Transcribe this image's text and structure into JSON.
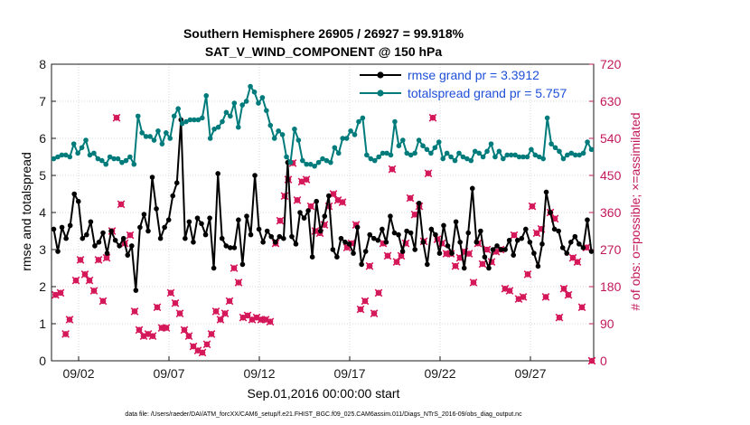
{
  "chart_data": {
    "type": "line",
    "title": "Southern Hemisphere 26905 / 26927 = 99.918%",
    "subtitle": "SAT_V_WIND_COMPONENT @ 150 hPa",
    "xlabel": "Sep.01,2016 00:00:00 start",
    "ylabel": "rmse and totalspread",
    "y2label": "# of obs: o=possible; ×=assimilated",
    "footnote": "data file: /Users/raeder/DAI/ATM_forcXX/CAM6_setup/f.e21.FHIST_BGC.f09_025.CAM6assim.011/Diags_NTrS_2016-09/obs_diag_output.nc",
    "x_range": [
      0.5,
      30.5
    ],
    "ylim": [
      0,
      8
    ],
    "y2lim": [
      0,
      720
    ],
    "grid": true,
    "legend_position": "top-right",
    "x_ticks": [
      {
        "value": 2,
        "label": "09/02"
      },
      {
        "value": 7,
        "label": "09/07"
      },
      {
        "value": 12,
        "label": "09/12"
      },
      {
        "value": 17,
        "label": "09/17"
      },
      {
        "value": 22,
        "label": "09/22"
      },
      {
        "value": 27,
        "label": "09/27"
      }
    ],
    "y_ticks": [
      "0",
      "1",
      "2",
      "3",
      "4",
      "5",
      "6",
      "7",
      "8"
    ],
    "y2_ticks": [
      "0",
      "90",
      "180",
      "270",
      "360",
      "450",
      "540",
      "630",
      "720"
    ],
    "colors": {
      "rmse": "#000000",
      "totalspread": "#007b7b",
      "obs": "#d4185a",
      "legend_text": "#1f4fd8",
      "right_axis": "#c2185b"
    },
    "series": [
      {
        "name": "rmse grand pr = 3.3912",
        "color": "#000000",
        "values": [
          3.55,
          2.95,
          3.6,
          3.3,
          3.65,
          4.5,
          4.3,
          3.3,
          3.4,
          3.75,
          3.1,
          3.2,
          3.45,
          2.9,
          3.5,
          3.25,
          3.1,
          3.3,
          2.85,
          3.1,
          1.9,
          3.6,
          3.95,
          3.5,
          4.95,
          4.1,
          3.3,
          3.6,
          3.8,
          4.45,
          4.8,
          6.5,
          3.3,
          3.75,
          3.2,
          3.85,
          3.7,
          3.4,
          3.85,
          2.5,
          5.05,
          3.3,
          3.1,
          3.05,
          3.05,
          3.8,
          2.6,
          3.9,
          3.4,
          5.0,
          3.55,
          3.2,
          3.5,
          3.35,
          3.2,
          3.35,
          3.3,
          5.35,
          3.35,
          3.15,
          4.0,
          3.85,
          4.05,
          2.8,
          4.3,
          3.5,
          3.9,
          4.45,
          3.0,
          2.8,
          3.3,
          3.2,
          3.15,
          2.9,
          3.6,
          2.6,
          2.95,
          3.4,
          3.3,
          3.25,
          3.55,
          3.2,
          3.9,
          3.45,
          3.4,
          2.95,
          3.5,
          3.45,
          3.0,
          4.25,
          3.2,
          2.6,
          3.55,
          3.4,
          2.9,
          3.65,
          3.1,
          2.9,
          3.75,
          3.2,
          2.5,
          3.45,
          4.65,
          3.2,
          3.5,
          2.8,
          2.5,
          3.0,
          3.1,
          3.0,
          3.0,
          3.25,
          2.85,
          3.25,
          3.3,
          3.55,
          3.2,
          2.9,
          2.55,
          3.15,
          4.55,
          4.0,
          3.55,
          3.5,
          3.05,
          2.9,
          3.2,
          3.35,
          3.15,
          3.05,
          3.8,
          2.95
        ]
      },
      {
        "name": "totalspread grand pr = 5.757",
        "color": "#007b7b",
        "values": [
          5.45,
          5.5,
          5.55,
          5.55,
          5.5,
          5.85,
          5.6,
          5.75,
          5.95,
          5.55,
          5.6,
          5.45,
          5.4,
          5.3,
          5.5,
          5.45,
          5.45,
          5.35,
          5.4,
          5.5,
          5.3,
          6.6,
          6.15,
          6.05,
          6.05,
          5.95,
          6.2,
          5.85,
          6.15,
          6.0,
          6.6,
          6.8,
          6.4,
          6.45,
          6.5,
          6.5,
          6.5,
          6.55,
          7.15,
          6.0,
          6.25,
          6.3,
          6.45,
          6.7,
          6.6,
          6.95,
          6.3,
          6.9,
          7.0,
          7.4,
          7.25,
          6.95,
          7.1,
          6.75,
          6.35,
          6.0,
          6.2,
          6.1,
          5.5,
          5.35,
          6.25,
          5.95,
          5.4,
          5.3,
          5.3,
          5.25,
          5.35,
          5.45,
          5.4,
          5.35,
          5.75,
          5.6,
          6.0,
          6.0,
          6.2,
          6.1,
          6.45,
          6.55,
          5.55,
          5.45,
          5.4,
          5.5,
          5.6,
          5.6,
          5.55,
          6.45,
          5.8,
          5.95,
          5.6,
          5.55,
          5.6,
          5.95,
          5.8,
          5.7,
          5.6,
          5.75,
          5.9,
          5.45,
          5.6,
          5.5,
          5.4,
          5.6,
          5.5,
          5.45,
          5.4,
          5.65,
          5.6,
          5.5,
          5.65,
          5.85,
          5.5,
          5.65,
          5.45,
          5.55,
          5.55,
          5.55,
          5.5,
          5.5,
          5.5,
          5.7,
          5.55,
          5.5,
          5.45,
          6.55,
          5.85,
          5.75,
          5.65,
          5.45,
          5.55,
          5.6,
          5.55,
          5.55,
          5.6,
          5.9,
          5.7
        ]
      }
    ],
    "obs_counts": [
      {
        "x": 0.72,
        "y": 160
      },
      {
        "x": 1.0,
        "y": 165
      },
      {
        "x": 1.28,
        "y": 65
      },
      {
        "x": 1.5,
        "y": 100
      },
      {
        "x": 1.85,
        "y": 195
      },
      {
        "x": 2.1,
        "y": 245
      },
      {
        "x": 2.35,
        "y": 210
      },
      {
        "x": 2.6,
        "y": 195
      },
      {
        "x": 2.85,
        "y": 170
      },
      {
        "x": 3.1,
        "y": 245
      },
      {
        "x": 3.35,
        "y": 145
      },
      {
        "x": 3.55,
        "y": 250
      },
      {
        "x": 3.85,
        "y": 315
      },
      {
        "x": 4.1,
        "y": 590
      },
      {
        "x": 4.35,
        "y": 380
      },
      {
        "x": 4.55,
        "y": 285
      },
      {
        "x": 4.85,
        "y": 305
      },
      {
        "x": 5.1,
        "y": 120
      },
      {
        "x": 5.35,
        "y": 75
      },
      {
        "x": 5.6,
        "y": 60
      },
      {
        "x": 5.85,
        "y": 65
      },
      {
        "x": 6.1,
        "y": 60
      },
      {
        "x": 6.35,
        "y": 130
      },
      {
        "x": 6.6,
        "y": 80
      },
      {
        "x": 6.85,
        "y": 80
      },
      {
        "x": 7.1,
        "y": 165
      },
      {
        "x": 7.35,
        "y": 140
      },
      {
        "x": 7.6,
        "y": 115
      },
      {
        "x": 7.85,
        "y": 75
      },
      {
        "x": 8.1,
        "y": 60
      },
      {
        "x": 8.35,
        "y": 35
      },
      {
        "x": 8.6,
        "y": 25
      },
      {
        "x": 8.85,
        "y": 20
      },
      {
        "x": 9.1,
        "y": 40
      },
      {
        "x": 9.35,
        "y": 65
      },
      {
        "x": 9.6,
        "y": 120
      },
      {
        "x": 9.85,
        "y": 100
      },
      {
        "x": 10.1,
        "y": 115
      },
      {
        "x": 10.35,
        "y": 145
      },
      {
        "x": 10.6,
        "y": 225
      },
      {
        "x": 10.85,
        "y": 190
      },
      {
        "x": 11.1,
        "y": 105
      },
      {
        "x": 11.35,
        "y": 110
      },
      {
        "x": 11.6,
        "y": 100
      },
      {
        "x": 11.85,
        "y": 105
      },
      {
        "x": 12.1,
        "y": 100
      },
      {
        "x": 12.35,
        "y": 100
      },
      {
        "x": 12.6,
        "y": 95
      },
      {
        "x": 12.9,
        "y": 285
      },
      {
        "x": 13.15,
        "y": 340
      },
      {
        "x": 13.4,
        "y": 400
      },
      {
        "x": 13.6,
        "y": 440
      },
      {
        "x": 13.85,
        "y": 480
      },
      {
        "x": 14.1,
        "y": 390
      },
      {
        "x": 14.35,
        "y": 435
      },
      {
        "x": 14.6,
        "y": 440
      },
      {
        "x": 14.85,
        "y": 375
      },
      {
        "x": 15.1,
        "y": 315
      },
      {
        "x": 15.35,
        "y": 310
      },
      {
        "x": 15.6,
        "y": 330
      },
      {
        "x": 15.85,
        "y": 375
      },
      {
        "x": 16.1,
        "y": 405
      },
      {
        "x": 16.35,
        "y": 390
      },
      {
        "x": 16.6,
        "y": 385
      },
      {
        "x": 16.85,
        "y": 275
      },
      {
        "x": 17.1,
        "y": 285
      },
      {
        "x": 17.35,
        "y": 330
      },
      {
        "x": 17.6,
        "y": 125
      },
      {
        "x": 17.85,
        "y": 145
      },
      {
        "x": 18.1,
        "y": 230
      },
      {
        "x": 18.35,
        "y": 115
      },
      {
        "x": 18.6,
        "y": 165
      },
      {
        "x": 18.85,
        "y": 285
      },
      {
        "x": 19.1,
        "y": 255
      },
      {
        "x": 19.35,
        "y": 465
      },
      {
        "x": 19.6,
        "y": 240
      },
      {
        "x": 19.85,
        "y": 255
      },
      {
        "x": 20.1,
        "y": 285
      },
      {
        "x": 20.35,
        "y": 395
      },
      {
        "x": 20.6,
        "y": 355
      },
      {
        "x": 20.85,
        "y": 375
      },
      {
        "x": 21.1,
        "y": 290
      },
      {
        "x": 21.35,
        "y": 455
      },
      {
        "x": 21.6,
        "y": 590
      },
      {
        "x": 21.85,
        "y": 295
      },
      {
        "x": 22.1,
        "y": 285
      },
      {
        "x": 22.35,
        "y": 260
      },
      {
        "x": 22.6,
        "y": 260
      },
      {
        "x": 22.85,
        "y": 230
      },
      {
        "x": 23.1,
        "y": 250
      },
      {
        "x": 23.35,
        "y": 265
      },
      {
        "x": 23.6,
        "y": 260
      },
      {
        "x": 23.85,
        "y": 190
      },
      {
        "x": 24.1,
        "y": 285
      },
      {
        "x": 24.35,
        "y": 235
      },
      {
        "x": 24.6,
        "y": 270
      },
      {
        "x": 24.85,
        "y": 240
      },
      {
        "x": 25.1,
        "y": 265
      },
      {
        "x": 25.35,
        "y": 270
      },
      {
        "x": 25.6,
        "y": 175
      },
      {
        "x": 25.85,
        "y": 170
      },
      {
        "x": 26.1,
        "y": 305
      },
      {
        "x": 26.35,
        "y": 150
      },
      {
        "x": 26.6,
        "y": 155
      },
      {
        "x": 26.85,
        "y": 210
      },
      {
        "x": 27.1,
        "y": 375
      },
      {
        "x": 27.35,
        "y": 310
      },
      {
        "x": 27.6,
        "y": 320
      },
      {
        "x": 27.85,
        "y": 155
      },
      {
        "x": 28.1,
        "y": 360
      },
      {
        "x": 28.35,
        "y": 345
      },
      {
        "x": 28.6,
        "y": 105
      },
      {
        "x": 28.85,
        "y": 175
      },
      {
        "x": 29.1,
        "y": 160
      },
      {
        "x": 29.35,
        "y": 250
      },
      {
        "x": 29.6,
        "y": 240
      },
      {
        "x": 29.85,
        "y": 130
      },
      {
        "x": 30.1,
        "y": 275
      },
      {
        "x": 30.4,
        "y": 0
      }
    ]
  }
}
